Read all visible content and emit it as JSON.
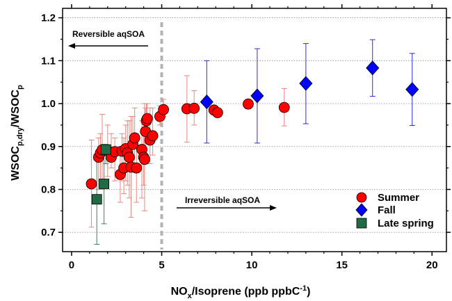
{
  "chart_data": {
    "type": "scatter",
    "xlabel": "NOx/Isoprene (ppb ppbC-1)",
    "xlabel_parts": {
      "main": "NO",
      "sub": "x",
      "mid": "/Isoprene (ppb ppbC",
      "sup": "-1",
      "end": ")"
    },
    "ylabel": "WSOCp,dry/WSOCp",
    "ylabel_parts": {
      "a": "WSOC",
      "a_sub": "p,dry",
      "b": "/WSOC",
      "b_sub": "p"
    },
    "xlim": [
      -0.5,
      20.8
    ],
    "ylim": [
      0.655,
      1.222
    ],
    "xticks": [
      0,
      5,
      10,
      15,
      20
    ],
    "xtick_labels": [
      "0",
      "5",
      "10",
      "15",
      "20"
    ],
    "yticks": [
      0.7,
      0.8,
      0.9,
      1.0,
      1.1,
      1.2
    ],
    "ytick_labels": [
      "0.7",
      "0.8",
      "0.9",
      "1.0",
      "1.1",
      "1.2"
    ],
    "grid": "horizontal-dotted",
    "legend_position": "bottom-right",
    "threshold_x": 5,
    "annotations": {
      "left": "Reversible aqSOA",
      "right": "Irreversible aqSOA"
    },
    "colors": {
      "summer": "#ff0000",
      "summer_error": "#e8877f",
      "fall": "#0000ff",
      "fall_error": "#2b2bd0",
      "spring": "#1e6b46",
      "spring_error": "#2e8b57",
      "threshold": "#b3b3b3",
      "grid": "#8c8c8c"
    },
    "series": [
      {
        "name": "Summer",
        "marker": "circle",
        "points": [
          {
            "x": 1.1,
            "y": 0.813,
            "lo": 0.712,
            "hi": 0.915
          },
          {
            "x": 1.5,
            "y": 0.875,
            "lo": 0.8,
            "hi": 0.92
          },
          {
            "x": 1.6,
            "y": 0.885,
            "lo": 0.82,
            "hi": 0.93
          },
          {
            "x": 1.7,
            "y": 0.892,
            "lo": 0.8,
            "hi": 0.975
          },
          {
            "x": 2.0,
            "y": 0.89,
            "lo": 0.83,
            "hi": 0.95
          },
          {
            "x": 2.2,
            "y": 0.875,
            "lo": 0.85,
            "hi": 0.93
          },
          {
            "x": 2.4,
            "y": 0.888,
            "lo": 0.82,
            "hi": 0.92
          },
          {
            "x": 2.7,
            "y": 0.835,
            "lo": 0.77,
            "hi": 0.9
          },
          {
            "x": 2.8,
            "y": 0.889,
            "lo": 0.82,
            "hi": 0.93
          },
          {
            "x": 2.9,
            "y": 0.85,
            "lo": 0.79,
            "hi": 0.92
          },
          {
            "x": 3.0,
            "y": 0.895,
            "lo": 0.82,
            "hi": 0.95
          },
          {
            "x": 3.1,
            "y": 0.885,
            "lo": 0.81,
            "hi": 0.96
          },
          {
            "x": 3.2,
            "y": 0.875,
            "lo": 0.78,
            "hi": 0.96
          },
          {
            "x": 3.3,
            "y": 0.852,
            "lo": 0.735,
            "hi": 0.97
          },
          {
            "x": 3.4,
            "y": 0.905,
            "lo": 0.84,
            "hi": 0.97
          },
          {
            "x": 3.5,
            "y": 0.92,
            "lo": 0.86,
            "hi": 0.99
          },
          {
            "x": 3.6,
            "y": 0.85,
            "lo": 0.77,
            "hi": 0.93
          },
          {
            "x": 3.9,
            "y": 0.893,
            "lo": 0.78,
            "hi": 0.96
          },
          {
            "x": 4.0,
            "y": 0.875,
            "lo": 0.81,
            "hi": 0.94
          },
          {
            "x": 4.05,
            "y": 0.87,
            "lo": 0.75,
            "hi": 1.0
          },
          {
            "x": 4.1,
            "y": 0.935,
            "lo": 0.88,
            "hi": 0.99
          },
          {
            "x": 4.15,
            "y": 0.96,
            "lo": 0.91,
            "hi": 1.0
          },
          {
            "x": 4.2,
            "y": 0.965,
            "lo": 0.93,
            "hi": 1.0
          },
          {
            "x": 4.35,
            "y": 0.915,
            "lo": 0.86,
            "hi": 0.99
          },
          {
            "x": 4.5,
            "y": 0.925,
            "lo": 0.88,
            "hi": 0.99
          },
          {
            "x": 4.9,
            "y": 0.97,
            "lo": 0.95,
            "hi": 0.995
          },
          {
            "x": 5.1,
            "y": 0.986,
            "lo": 0.97,
            "hi": 1.01
          },
          {
            "x": 6.4,
            "y": 0.988,
            "lo": 0.91,
            "hi": 1.065
          },
          {
            "x": 6.8,
            "y": 0.989,
            "lo": 0.95,
            "hi": 1.03
          },
          {
            "x": 7.9,
            "y": 0.985,
            "lo": 0.975,
            "hi": 0.995
          },
          {
            "x": 8.1,
            "y": 0.979,
            "lo": 0.972,
            "hi": 0.987
          },
          {
            "x": 9.8,
            "y": 0.999,
            "lo": 0.99,
            "hi": 1.008
          },
          {
            "x": 11.8,
            "y": 0.991,
            "lo": 0.948,
            "hi": 1.035
          }
        ]
      },
      {
        "name": "Fall",
        "marker": "diamond",
        "points": [
          {
            "x": 7.5,
            "y": 1.004,
            "lo": 0.908,
            "hi": 1.1
          },
          {
            "x": 10.3,
            "y": 1.018,
            "lo": 0.908,
            "hi": 1.128
          },
          {
            "x": 13.0,
            "y": 1.047,
            "lo": 0.953,
            "hi": 1.14
          },
          {
            "x": 16.7,
            "y": 1.083,
            "lo": 1.017,
            "hi": 1.149
          },
          {
            "x": 18.9,
            "y": 1.033,
            "lo": 0.949,
            "hi": 1.117
          }
        ]
      },
      {
        "name": "Late spring",
        "marker": "square",
        "points": [
          {
            "x": 1.4,
            "y": 0.777,
            "lo": 0.672,
            "hi": 0.88
          },
          {
            "x": 1.8,
            "y": 0.813,
            "lo": 0.72,
            "hi": 0.905
          },
          {
            "x": 1.9,
            "y": 0.893,
            "lo": 0.86,
            "hi": 0.905
          }
        ]
      }
    ]
  }
}
